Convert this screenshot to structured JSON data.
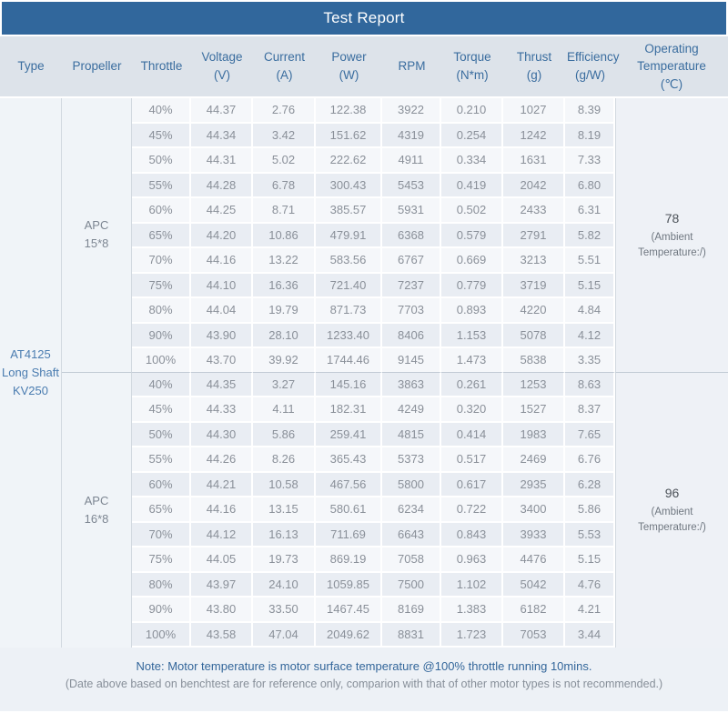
{
  "title": "Test Report",
  "colors": {
    "title_bar": "#31679c",
    "header_bg": "#dde3ea",
    "header_text": "#3a6d9f",
    "row_light": "#f5f7fa",
    "row_dark": "#e9edf3",
    "type_text": "#4a7cb0",
    "note_text": "#33669a"
  },
  "columns": [
    {
      "label": "Type"
    },
    {
      "label": "Propeller"
    },
    {
      "label": "Throttle"
    },
    {
      "label": "Voltage",
      "unit": "(V)"
    },
    {
      "label": "Current",
      "unit": "(A)"
    },
    {
      "label": "Power",
      "unit": "(W)"
    },
    {
      "label": "RPM"
    },
    {
      "label": "Torque",
      "unit": "(N*m)"
    },
    {
      "label": "Thrust",
      "unit": "(g)"
    },
    {
      "label": "Efficiency",
      "unit": "(g/W)"
    },
    {
      "label": "Operating Temperature",
      "unit": "(℃)"
    }
  ],
  "type_label": "AT4125\nLong Shaft\nKV250",
  "groups": [
    {
      "propeller": "APC\n15*8",
      "operating_temperature": {
        "value": "78",
        "note": "(Ambient Temperature:/)"
      },
      "rows": [
        [
          "40%",
          "44.37",
          "2.76",
          "122.38",
          "3922",
          "0.210",
          "1027",
          "8.39"
        ],
        [
          "45%",
          "44.34",
          "3.42",
          "151.62",
          "4319",
          "0.254",
          "1242",
          "8.19"
        ],
        [
          "50%",
          "44.31",
          "5.02",
          "222.62",
          "4911",
          "0.334",
          "1631",
          "7.33"
        ],
        [
          "55%",
          "44.28",
          "6.78",
          "300.43",
          "5453",
          "0.419",
          "2042",
          "6.80"
        ],
        [
          "60%",
          "44.25",
          "8.71",
          "385.57",
          "5931",
          "0.502",
          "2433",
          "6.31"
        ],
        [
          "65%",
          "44.20",
          "10.86",
          "479.91",
          "6368",
          "0.579",
          "2791",
          "5.82"
        ],
        [
          "70%",
          "44.16",
          "13.22",
          "583.56",
          "6767",
          "0.669",
          "3213",
          "5.51"
        ],
        [
          "75%",
          "44.10",
          "16.36",
          "721.40",
          "7237",
          "0.779",
          "3719",
          "5.15"
        ],
        [
          "80%",
          "44.04",
          "19.79",
          "871.73",
          "7703",
          "0.893",
          "4220",
          "4.84"
        ],
        [
          "90%",
          "43.90",
          "28.10",
          "1233.40",
          "8406",
          "1.153",
          "5078",
          "4.12"
        ],
        [
          "100%",
          "43.70",
          "39.92",
          "1744.46",
          "9145",
          "1.473",
          "5838",
          "3.35"
        ]
      ]
    },
    {
      "propeller": "APC\n16*8",
      "operating_temperature": {
        "value": "96",
        "note": "(Ambient Temperature:/)"
      },
      "rows": [
        [
          "40%",
          "44.35",
          "3.27",
          "145.16",
          "3863",
          "0.261",
          "1253",
          "8.63"
        ],
        [
          "45%",
          "44.33",
          "4.11",
          "182.31",
          "4249",
          "0.320",
          "1527",
          "8.37"
        ],
        [
          "50%",
          "44.30",
          "5.86",
          "259.41",
          "4815",
          "0.414",
          "1983",
          "7.65"
        ],
        [
          "55%",
          "44.26",
          "8.26",
          "365.43",
          "5373",
          "0.517",
          "2469",
          "6.76"
        ],
        [
          "60%",
          "44.21",
          "10.58",
          "467.56",
          "5800",
          "0.617",
          "2935",
          "6.28"
        ],
        [
          "65%",
          "44.16",
          "13.15",
          "580.61",
          "6234",
          "0.722",
          "3400",
          "5.86"
        ],
        [
          "70%",
          "44.12",
          "16.13",
          "711.69",
          "6643",
          "0.843",
          "3933",
          "5.53"
        ],
        [
          "75%",
          "44.05",
          "19.73",
          "869.19",
          "7058",
          "0.963",
          "4476",
          "5.15"
        ],
        [
          "80%",
          "43.97",
          "24.10",
          "1059.85",
          "7500",
          "1.102",
          "5042",
          "4.76"
        ],
        [
          "90%",
          "43.80",
          "33.50",
          "1467.45",
          "8169",
          "1.383",
          "6182",
          "4.21"
        ],
        [
          "100%",
          "43.58",
          "47.04",
          "2049.62",
          "8831",
          "1.723",
          "7053",
          "3.44"
        ]
      ]
    }
  ],
  "footer": {
    "note1": "Note: Motor temperature is motor surface temperature @100% throttle running 10mins.",
    "note2": "(Date above based on benchtest are for reference only, comparion with that of other motor types is not recommended.)"
  }
}
